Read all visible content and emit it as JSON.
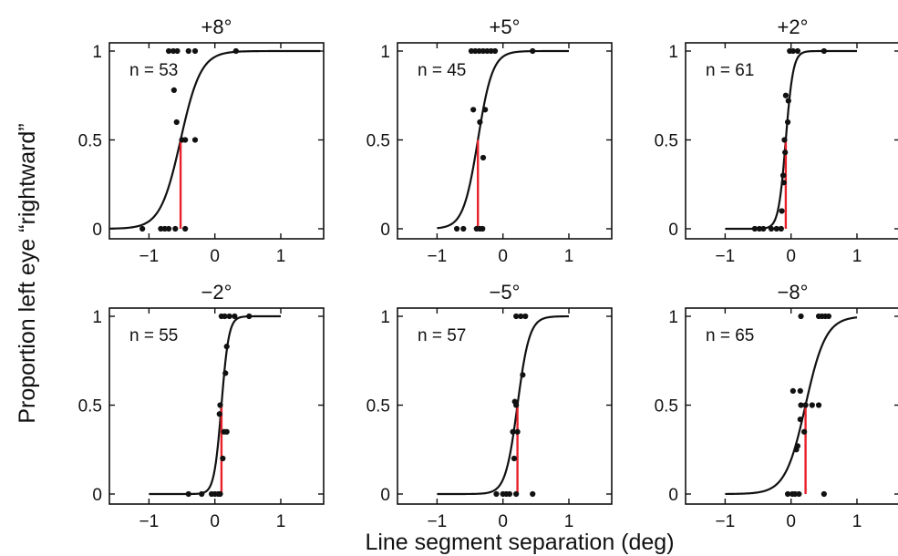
{
  "figure": {
    "xlabel": "Line segment separation (deg)",
    "ylabel": "Proportion left eye  “rightward”"
  },
  "chart_data": [
    {
      "type": "scatter",
      "title": "+8°",
      "n_label": "n = 53",
      "xlim": [
        -1.6,
        1.65
      ],
      "ylim": [
        0,
        1
      ],
      "xticks": [
        -1,
        0,
        1
      ],
      "yticks": [
        0,
        0.5,
        1
      ],
      "xtick_labels": [
        "−1",
        "0",
        "1"
      ],
      "ytick_labels": [
        "0",
        "0.5",
        "1"
      ],
      "fit": {
        "midpoint": -0.52,
        "slope": 6.5,
        "x_range": [
          -1.6,
          1.6
        ]
      },
      "midpoint_line_color": "#e8202a",
      "points": [
        [
          -1.1,
          0
        ],
        [
          -0.82,
          0
        ],
        [
          -0.76,
          0
        ],
        [
          -0.7,
          0
        ],
        [
          -0.6,
          0
        ],
        [
          -0.45,
          0
        ],
        [
          -0.7,
          1
        ],
        [
          -0.63,
          1
        ],
        [
          -0.57,
          1
        ],
        [
          -0.4,
          1
        ],
        [
          -0.3,
          1
        ],
        [
          0.32,
          1
        ],
        [
          -0.62,
          0.78
        ],
        [
          -0.58,
          0.6
        ],
        [
          -0.5,
          0.5
        ],
        [
          -0.45,
          0.5
        ],
        [
          -0.3,
          0.5
        ]
      ]
    },
    {
      "type": "scatter",
      "title": "+5°",
      "n_label": "n = 45",
      "xlim": [
        -1.6,
        1.65
      ],
      "ylim": [
        0,
        1
      ],
      "xticks": [
        -1,
        0,
        1
      ],
      "yticks": [
        0,
        0.5,
        1
      ],
      "xtick_labels": [
        "−1",
        "0",
        "1"
      ],
      "ytick_labels": [
        "0",
        "0.5",
        "1"
      ],
      "fit": {
        "midpoint": -0.38,
        "slope": 9,
        "x_range": [
          -1.0,
          1.0
        ]
      },
      "midpoint_line_color": "#e8202a",
      "points": [
        [
          -0.7,
          0
        ],
        [
          -0.6,
          0
        ],
        [
          -0.4,
          0
        ],
        [
          -0.35,
          0
        ],
        [
          -0.31,
          0
        ],
        [
          -0.48,
          1
        ],
        [
          -0.42,
          1
        ],
        [
          -0.36,
          1
        ],
        [
          -0.3,
          1
        ],
        [
          -0.24,
          1
        ],
        [
          -0.18,
          1
        ],
        [
          -0.12,
          1
        ],
        [
          0.45,
          1
        ],
        [
          -0.45,
          0.67
        ],
        [
          -0.35,
          0.6
        ],
        [
          -0.27,
          0.67
        ],
        [
          -0.3,
          0.4
        ]
      ]
    },
    {
      "type": "scatter",
      "title": "+2°",
      "n_label": "n = 61",
      "xlim": [
        -1.6,
        1.65
      ],
      "ylim": [
        0,
        1
      ],
      "xticks": [
        -1,
        0,
        1
      ],
      "yticks": [
        0,
        0.5,
        1
      ],
      "xtick_labels": [
        "−1",
        "0",
        "1"
      ],
      "ytick_labels": [
        "0",
        "0.5",
        "1"
      ],
      "fit": {
        "midpoint": -0.08,
        "slope": 18,
        "x_range": [
          -1.0,
          1.0
        ]
      },
      "midpoint_line_color": "#e8202a",
      "points": [
        [
          -0.55,
          0
        ],
        [
          -0.48,
          0
        ],
        [
          -0.42,
          0
        ],
        [
          -0.3,
          0
        ],
        [
          -0.22,
          0
        ],
        [
          -0.15,
          0
        ],
        [
          -0.02,
          1
        ],
        [
          0.03,
          1
        ],
        [
          0.1,
          1
        ],
        [
          0.5,
          1
        ],
        [
          -0.08,
          0.75
        ],
        [
          -0.04,
          0.72
        ],
        [
          -0.05,
          0.6
        ],
        [
          -0.1,
          0.5
        ],
        [
          -0.09,
          0.43
        ],
        [
          -0.12,
          0.3
        ],
        [
          -0.11,
          0.26
        ],
        [
          -0.14,
          0.1
        ]
      ]
    },
    {
      "type": "scatter",
      "title": "−2°",
      "n_label": "n = 55",
      "xlim": [
        -1.6,
        1.65
      ],
      "ylim": [
        0,
        1
      ],
      "xticks": [
        -1,
        0,
        1
      ],
      "yticks": [
        0,
        0.5,
        1
      ],
      "xtick_labels": [
        "−1",
        "0",
        "1"
      ],
      "ytick_labels": [
        "0",
        "0.5",
        "1"
      ],
      "fit": {
        "midpoint": 0.1,
        "slope": 18,
        "x_range": [
          -1.0,
          1.0
        ]
      },
      "midpoint_line_color": "#e8202a",
      "points": [
        [
          -0.4,
          0
        ],
        [
          -0.2,
          0
        ],
        [
          -0.05,
          0
        ],
        [
          0.0,
          0
        ],
        [
          0.05,
          0
        ],
        [
          0.08,
          0
        ],
        [
          0.1,
          1
        ],
        [
          0.15,
          1
        ],
        [
          0.22,
          1
        ],
        [
          0.3,
          1
        ],
        [
          0.52,
          1
        ],
        [
          0.18,
          0.83
        ],
        [
          0.16,
          0.68
        ],
        [
          0.08,
          0.5
        ],
        [
          0.07,
          0.45
        ],
        [
          0.14,
          0.35
        ],
        [
          0.18,
          0.35
        ],
        [
          0.12,
          0.2
        ]
      ]
    },
    {
      "type": "scatter",
      "title": "−5°",
      "n_label": "n = 57",
      "xlim": [
        -1.6,
        1.65
      ],
      "ylim": [
        0,
        1
      ],
      "xticks": [
        -1,
        0,
        1
      ],
      "yticks": [
        0,
        0.5,
        1
      ],
      "xtick_labels": [
        "−1",
        "0",
        "1"
      ],
      "ytick_labels": [
        "0",
        "0.5",
        "1"
      ],
      "fit": {
        "midpoint": 0.22,
        "slope": 11,
        "x_range": [
          -1.0,
          1.0
        ]
      },
      "midpoint_line_color": "#e8202a",
      "points": [
        [
          -0.1,
          0
        ],
        [
          0.0,
          0
        ],
        [
          0.05,
          0
        ],
        [
          0.1,
          0
        ],
        [
          0.2,
          0
        ],
        [
          0.45,
          0
        ],
        [
          0.2,
          1
        ],
        [
          0.27,
          1
        ],
        [
          0.34,
          1
        ],
        [
          0.3,
          0.67
        ],
        [
          0.18,
          0.52
        ],
        [
          0.2,
          0.5
        ],
        [
          0.15,
          0.35
        ],
        [
          0.22,
          0.35
        ],
        [
          0.17,
          0.2
        ]
      ]
    },
    {
      "type": "scatter",
      "title": "−8°",
      "n_label": "n = 65",
      "xlim": [
        -1.6,
        1.65
      ],
      "ylim": [
        0,
        1
      ],
      "xticks": [
        -1,
        0,
        1
      ],
      "yticks": [
        0,
        0.5,
        1
      ],
      "xtick_labels": [
        "−1",
        "0",
        "1"
      ],
      "ytick_labels": [
        "0",
        "0.5",
        "1"
      ],
      "fit": {
        "midpoint": 0.22,
        "slope": 6.5,
        "x_range": [
          -1.0,
          1.0
        ]
      },
      "midpoint_line_color": "#e8202a",
      "points": [
        [
          -0.05,
          0
        ],
        [
          0.02,
          0
        ],
        [
          0.06,
          0
        ],
        [
          0.12,
          0
        ],
        [
          0.5,
          0
        ],
        [
          0.15,
          1
        ],
        [
          0.42,
          1
        ],
        [
          0.47,
          1
        ],
        [
          0.52,
          1
        ],
        [
          0.57,
          1
        ],
        [
          0.03,
          0.58
        ],
        [
          0.14,
          0.58
        ],
        [
          0.15,
          0.5
        ],
        [
          0.22,
          0.5
        ],
        [
          0.32,
          0.5
        ],
        [
          0.42,
          0.5
        ],
        [
          0.14,
          0.42
        ],
        [
          0.2,
          0.35
        ],
        [
          0.08,
          0.25
        ],
        [
          0.1,
          0.27
        ]
      ]
    }
  ]
}
